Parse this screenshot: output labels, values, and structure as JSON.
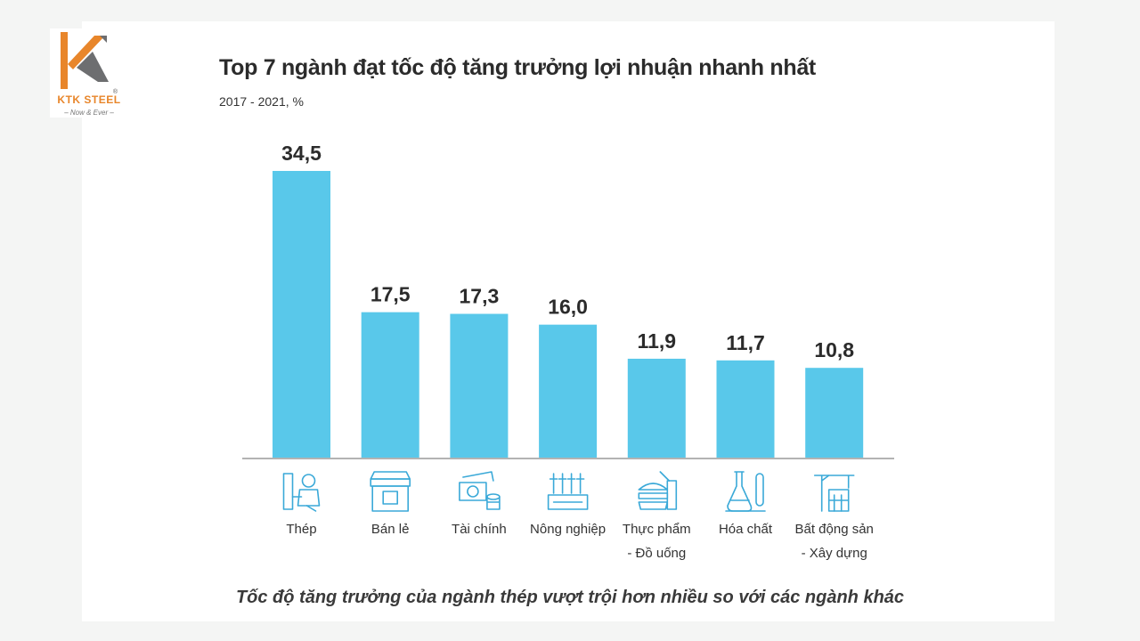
{
  "logo": {
    "name": "KTK STEEL",
    "registered": "®",
    "tagline": "– Now & Ever –",
    "colors": {
      "orange": "#e8862b",
      "gray": "#6d6e70"
    }
  },
  "chart_data": {
    "type": "bar",
    "title": "Top 7 ngành đạt tốc độ tăng trưởng lợi nhuận nhanh nhất",
    "subtitle": "2017 - 2021, %",
    "categories": [
      [
        "Thép"
      ],
      [
        "Bán lẻ"
      ],
      [
        "Tài chính"
      ],
      [
        "Nông nghiệp"
      ],
      [
        "Thực phẩm",
        "- Đồ uống"
      ],
      [
        "Hóa chất"
      ],
      [
        "Bất động sản",
        "- Xây dựng"
      ]
    ],
    "values": [
      34.5,
      17.5,
      17.3,
      16.0,
      11.9,
      11.7,
      10.8
    ],
    "value_labels": [
      "34,5",
      "17,5",
      "17,3",
      "16,0",
      "11,9",
      "11,7",
      "10,8"
    ],
    "icons": [
      "welder-icon",
      "store-icon",
      "money-icon",
      "farm-icon",
      "food-drink-icon",
      "flask-icon",
      "construction-crane-icon"
    ],
    "ylim": [
      0,
      34.5
    ],
    "grid": false,
    "legend": "none",
    "bar_color": "#59c8ea",
    "axis_color": "#9a9a9a",
    "icon_color": "#3aa9d8"
  },
  "caption": "Tốc độ tăng trưởng của ngành thép vượt trội hơn nhiều so với các ngành khác"
}
